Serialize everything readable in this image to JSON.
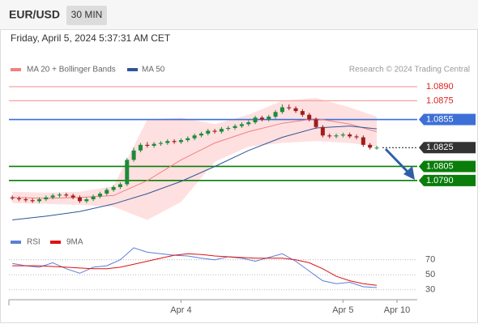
{
  "chart_data": [
    {
      "type": "candlestick",
      "title": "EUR/USD",
      "timeframe": "30 MIN",
      "subtitle": "Friday, April 5, 2024 5:37:31 AM CET",
      "source": "Research © 2024 Trading Central",
      "up_color": "#1e8a3a",
      "down_color": "#a11d1d",
      "x": [
        -25,
        -24,
        -23,
        -22,
        -21,
        -20,
        -19,
        -18,
        -17,
        -16,
        -15,
        -14,
        -13,
        -12,
        -11,
        -10,
        -9,
        -8,
        -7,
        -6,
        -5,
        -4,
        -3,
        -2,
        -1,
        0,
        1,
        2,
        3,
        4,
        5,
        6,
        7,
        8,
        9,
        10,
        11,
        12,
        13,
        14,
        15,
        16,
        17,
        18,
        19,
        20,
        21,
        22,
        23,
        24,
        25,
        26,
        27,
        28,
        29
      ],
      "open": [
        1.0772,
        1.0771,
        1.077,
        1.0769,
        1.0768,
        1.077,
        1.0772,
        1.0774,
        1.0775,
        1.0774,
        1.0772,
        1.0768,
        1.077,
        1.0773,
        1.0776,
        1.078,
        1.0783,
        1.0786,
        1.0812,
        1.0822,
        1.0828,
        1.0827,
        1.0829,
        1.083,
        1.0832,
        1.0831,
        1.0833,
        1.0835,
        1.0838,
        1.084,
        1.0843,
        1.0842,
        1.0845,
        1.0846,
        1.0848,
        1.085,
        1.0852,
        1.0857,
        1.0855,
        1.0858,
        1.0863,
        1.0868,
        1.0867,
        1.0864,
        1.086,
        1.0855,
        1.0847,
        1.0838,
        1.0837,
        1.0838,
        1.0839,
        1.0837,
        1.0836,
        1.0828,
        1.0825
      ],
      "high": [
        1.0774,
        1.0773,
        1.0772,
        1.0771,
        1.0772,
        1.0774,
        1.0776,
        1.0777,
        1.0777,
        1.0776,
        1.0774,
        1.0772,
        1.0775,
        1.0778,
        1.0782,
        1.0785,
        1.0788,
        1.0814,
        1.0825,
        1.083,
        1.0831,
        1.0831,
        1.0832,
        1.0834,
        1.0834,
        1.0835,
        1.0837,
        1.084,
        1.0842,
        1.0845,
        1.0845,
        1.0847,
        1.0848,
        1.085,
        1.0852,
        1.0854,
        1.0859,
        1.0859,
        1.086,
        1.0865,
        1.0871,
        1.0871,
        1.0869,
        1.0866,
        1.0862,
        1.0857,
        1.0849,
        1.084,
        1.084,
        1.0841,
        1.0841,
        1.0839,
        1.0838,
        1.083,
        1.0827
      ],
      "low": [
        1.0769,
        1.0768,
        1.0767,
        1.0766,
        1.0766,
        1.0768,
        1.077,
        1.0772,
        1.0772,
        1.077,
        1.0766,
        1.0766,
        1.0768,
        1.0771,
        1.0774,
        1.0778,
        1.0781,
        1.0784,
        1.081,
        1.082,
        1.0825,
        1.0825,
        1.0827,
        1.0828,
        1.0829,
        1.0829,
        1.0831,
        1.0833,
        1.0836,
        1.0838,
        1.084,
        1.084,
        1.0843,
        1.0844,
        1.0846,
        1.0848,
        1.085,
        1.0853,
        1.0853,
        1.0856,
        1.0861,
        1.0865,
        1.0862,
        1.0858,
        1.0853,
        1.0845,
        1.0836,
        1.0835,
        1.0835,
        1.0836,
        1.0835,
        1.0834,
        1.0826,
        1.0823,
        1.0823
      ],
      "close": [
        1.0771,
        1.077,
        1.0769,
        1.0768,
        1.077,
        1.0772,
        1.0774,
        1.0775,
        1.0774,
        1.0772,
        1.0768,
        1.077,
        1.0773,
        1.0776,
        1.078,
        1.0783,
        1.0786,
        1.0812,
        1.0822,
        1.0828,
        1.0827,
        1.0829,
        1.083,
        1.0832,
        1.0831,
        1.0833,
        1.0835,
        1.0838,
        1.084,
        1.0843,
        1.0842,
        1.0845,
        1.0846,
        1.0848,
        1.085,
        1.0852,
        1.0857,
        1.0855,
        1.0858,
        1.0863,
        1.0868,
        1.0867,
        1.0864,
        1.086,
        1.0855,
        1.0847,
        1.0838,
        1.0837,
        1.0838,
        1.0839,
        1.0837,
        1.0836,
        1.0828,
        1.0825,
        1.0825
      ],
      "series": [
        {
          "name": "MA 20 + Bollinger Bands",
          "color": "#f08080",
          "band_color": "#ffd6d6",
          "x": [
            -25,
            -20,
            -15,
            -10,
            -5,
            0,
            5,
            10,
            15,
            20,
            25,
            29
          ],
          "values": [
            1.0772,
            1.0771,
            1.0772,
            1.0774,
            1.079,
            1.0812,
            1.083,
            1.0842,
            1.0851,
            1.0856,
            1.085,
            1.0842
          ],
          "upper": [
            1.0778,
            1.0777,
            1.0778,
            1.0784,
            1.0855,
            1.0857,
            1.085,
            1.086,
            1.0875,
            1.0878,
            1.0868,
            1.0858
          ],
          "lower": [
            1.0766,
            1.0765,
            1.0764,
            1.0762,
            1.0748,
            1.0767,
            1.081,
            1.0826,
            1.083,
            1.0832,
            1.083,
            1.0826
          ]
        },
        {
          "name": "MA 50",
          "color": "#2f5597",
          "x": [
            -25,
            -20,
            -15,
            -10,
            -5,
            0,
            5,
            10,
            15,
            20,
            25,
            29
          ],
          "values": [
            1.0748,
            1.0752,
            1.0757,
            1.0765,
            1.0776,
            1.0789,
            1.0805,
            1.0822,
            1.0836,
            1.0846,
            1.0848,
            1.0845
          ]
        }
      ],
      "levels": [
        {
          "value": 1.089,
          "label": "1.0890",
          "color": "#f4a3a3",
          "text_color": "#e02020",
          "boxed": false,
          "dotted": false
        },
        {
          "value": 1.0875,
          "label": "1.0875",
          "color": "#f4a3a3",
          "text_color": "#e02020",
          "boxed": false,
          "dotted": false
        },
        {
          "value": 1.0855,
          "label": "1.0855",
          "color": "#3d6fd6",
          "text_color": "#ffffff",
          "boxed": true,
          "dotted": false
        },
        {
          "value": 1.0825,
          "label": "1.0825",
          "color": "#333333",
          "text_color": "#ffffff",
          "boxed": true,
          "dotted": true
        },
        {
          "value": 1.0805,
          "label": "1.0805",
          "color": "#0a7d0a",
          "text_color": "#ffffff",
          "boxed": true,
          "dotted": false
        },
        {
          "value": 1.079,
          "label": "1.0790",
          "color": "#0a7d0a",
          "text_color": "#ffffff",
          "boxed": true,
          "dotted": false
        }
      ],
      "xlim": [
        -25.5,
        35
      ],
      "ylim": [
        1.0745,
        1.0915
      ],
      "xticks": [
        {
          "value": 0,
          "label": "Apr 4"
        },
        {
          "value": 24,
          "label": "Apr 5"
        },
        {
          "value": 32,
          "label": "Apr 10"
        }
      ]
    },
    {
      "type": "line",
      "x": [
        -25,
        -23,
        -21,
        -19,
        -17,
        -15,
        -13,
        -11,
        -9,
        -7,
        -5,
        -3,
        -1,
        1,
        3,
        5,
        7,
        9,
        11,
        13,
        15,
        17,
        19,
        21,
        23,
        25,
        27,
        29
      ],
      "series": [
        {
          "name": "RSI",
          "color": "#5b7fd6",
          "values": [
            65,
            62,
            60,
            66,
            58,
            52,
            60,
            62,
            70,
            86,
            80,
            78,
            76,
            75,
            72,
            70,
            74,
            72,
            68,
            73,
            78,
            68,
            55,
            42,
            38,
            40,
            34,
            33
          ]
        },
        {
          "name": "9MA",
          "color": "#e01010",
          "values": [
            62,
            62,
            62,
            61,
            60,
            59,
            58,
            58,
            60,
            64,
            68,
            72,
            76,
            78,
            77,
            75,
            74,
            73,
            72,
            72,
            72,
            70,
            66,
            58,
            48,
            42,
            38,
            36
          ]
        }
      ],
      "xlim": [
        -25.5,
        35
      ],
      "ylim": [
        20,
        88
      ],
      "yticks": [
        70,
        50,
        30
      ],
      "grid": true
    }
  ]
}
